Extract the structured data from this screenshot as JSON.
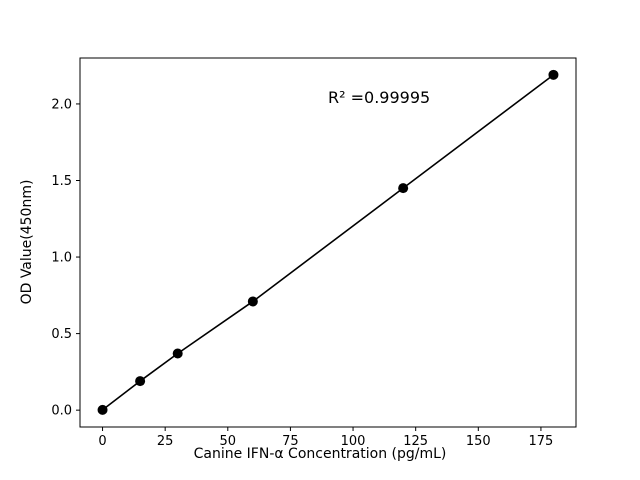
{
  "chart_data": {
    "type": "line",
    "subtype": "scatter-line-standard-curve",
    "x": [
      0,
      15,
      30,
      60,
      120,
      180
    ],
    "y": [
      0.002,
      0.19,
      0.37,
      0.71,
      1.45,
      2.19
    ],
    "title": "",
    "xlabel": "Canine IFN-α Concentration (pg/mL)",
    "ylabel": "OD Value(450nm)",
    "annotation": "R² =0.99995",
    "xlim": [
      -9,
      189
    ],
    "ylim": [
      -0.11,
      2.3
    ],
    "xticks": [
      0,
      25,
      50,
      75,
      100,
      125,
      150,
      175
    ],
    "yticks": [
      0.0,
      0.5,
      1.0,
      1.5,
      2.0
    ],
    "grid": false,
    "legend_position": "none",
    "line_color": "#000000",
    "marker_color": "#000000",
    "axes_color": "#000000",
    "background_color": "#ffffff"
  }
}
